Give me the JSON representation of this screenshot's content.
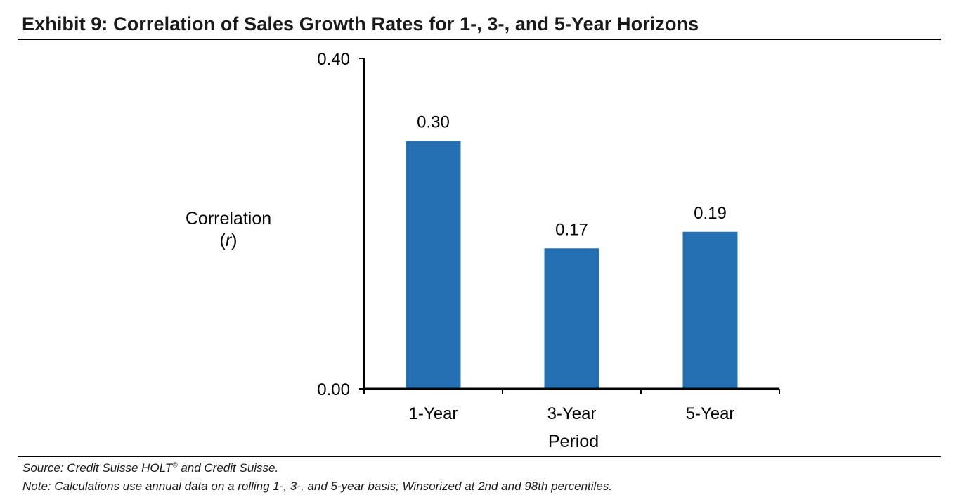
{
  "title": "Exhibit 9: Correlation of Sales Growth Rates for 1-, 3-, and 5-Year Horizons",
  "chart_data": {
    "type": "bar",
    "categories": [
      "1-Year",
      "3-Year",
      "5-Year"
    ],
    "values": [
      0.3,
      0.17,
      0.19
    ],
    "data_labels": [
      "0.30",
      "0.17",
      "0.19"
    ],
    "ylim": [
      0,
      0.4
    ],
    "yticks": [
      "0.00",
      "0.40"
    ],
    "ylabel": "Correlation",
    "ylabel_symbol": "r",
    "xlabel": "Period",
    "bar_color": "#2470b3",
    "grid": false,
    "legend": "none"
  },
  "source": {
    "prefix": "Source: Credit Suisse HOLT",
    "mark": "®",
    "suffix": " and Credit Suisse."
  },
  "note": "Note: Calculations use annual data on a rolling 1-, 3-, and 5-year basis; Winsorized at 2nd and 98th percentiles."
}
